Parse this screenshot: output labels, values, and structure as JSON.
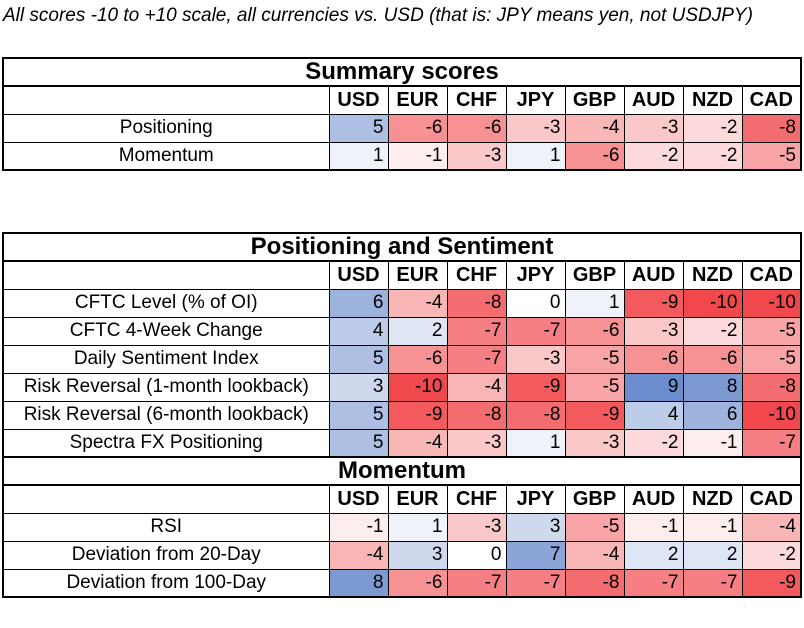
{
  "note": "All scores -10 to +10 scale, all currencies vs. USD (that is: JPY means yen, not USDJPY)",
  "currencies": [
    "USD",
    "EUR",
    "CHF",
    "JPY",
    "GBP",
    "AUD",
    "NZD",
    "CAD"
  ],
  "summary": {
    "title": "Summary scores",
    "rows": [
      {
        "label": "Positioning",
        "values": [
          5,
          -6,
          -6,
          -3,
          -4,
          -3,
          -2,
          -8
        ]
      },
      {
        "label": "Momentum",
        "values": [
          1,
          -1,
          -3,
          1,
          -6,
          -2,
          -2,
          -5
        ]
      }
    ]
  },
  "positioning": {
    "title": "Positioning and Sentiment",
    "rows": [
      {
        "label": "CFTC Level (% of OI)",
        "values": [
          6,
          -4,
          -8,
          0,
          1,
          -9,
          -10,
          -10
        ]
      },
      {
        "label": "CFTC 4-Week Change",
        "values": [
          4,
          2,
          -7,
          -7,
          -6,
          -3,
          -2,
          -5
        ]
      },
      {
        "label": "Daily Sentiment Index",
        "values": [
          5,
          -6,
          -7,
          -3,
          -5,
          -6,
          -6,
          -5
        ]
      },
      {
        "label": "Risk Reversal (1-month lookback)",
        "values": [
          3,
          -10,
          -4,
          -9,
          -5,
          9,
          8,
          -8
        ]
      },
      {
        "label": "Risk Reversal (6-month lookback)",
        "values": [
          5,
          -9,
          -8,
          -8,
          -9,
          4,
          6,
          -10
        ]
      },
      {
        "label": "Spectra FX Positioning",
        "values": [
          5,
          -4,
          -3,
          1,
          -3,
          -2,
          -1,
          -7
        ]
      }
    ]
  },
  "momentum": {
    "title": "Momentum",
    "rows": [
      {
        "label": "RSI",
        "values": [
          -1,
          1,
          -3,
          3,
          -5,
          -1,
          -1,
          -4
        ]
      },
      {
        "label": "Deviation from 20-Day",
        "values": [
          -4,
          3,
          0,
          7,
          -4,
          2,
          2,
          -2
        ]
      },
      {
        "label": "Deviation from 100-Day",
        "values": [
          8,
          -6,
          -7,
          -7,
          -8,
          -7,
          -7,
          -9
        ]
      }
    ]
  },
  "colors": {
    "positive": "#5b7fc7",
    "negative": "#f0484c",
    "neutral": "#ffffff"
  }
}
